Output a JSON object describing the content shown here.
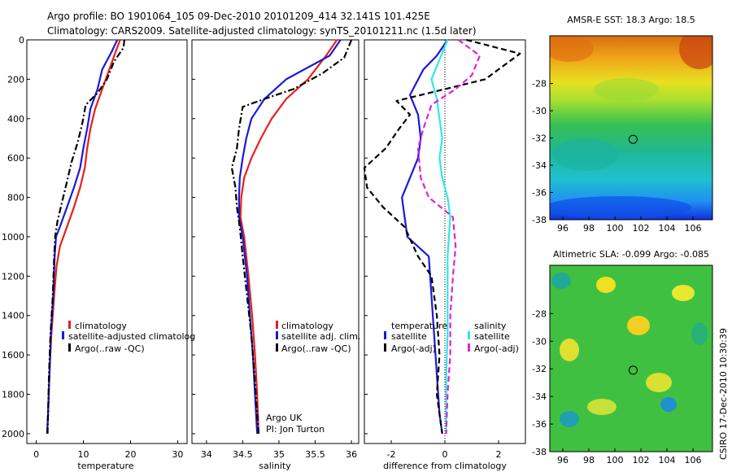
{
  "header": {
    "line1": "Argo profile: BO 1901064_105 09-Dec-2010 20101209_414 32.141S 101.425E",
    "line2": "Climatology: CARS2009. Satellite-adjusted climatology: synTS_20101211.nc (1.5d later)"
  },
  "side_note": "CSIRO 17-Dec-2010 10:30:39",
  "colors": {
    "climatology": "#e8201b",
    "satellite": "#1a1ad6",
    "argo": "#000000",
    "sal_satellite": "#30e8e8",
    "sal_argo": "#e020d8"
  },
  "chart_data": [
    {
      "type": "line",
      "panel": "temperature",
      "xlabel": "temperature",
      "xlim": [
        -2,
        32
      ],
      "ylim": [
        2050,
        0
      ],
      "y_reversed": true,
      "xticks": [
        0,
        10,
        20,
        30
      ],
      "yticks": [
        0,
        200,
        400,
        600,
        800,
        1000,
        1200,
        1400,
        1600,
        1800,
        2000
      ],
      "series": [
        {
          "name": "climatology",
          "style": "solid",
          "color_key": "climatology",
          "points": [
            [
              17.8,
              0
            ],
            [
              17,
              50
            ],
            [
              15.5,
              150
            ],
            [
              14,
              250
            ],
            [
              12.5,
              350
            ],
            [
              11.5,
              450
            ],
            [
              10.8,
              550
            ],
            [
              10.3,
              650
            ],
            [
              9.3,
              750
            ],
            [
              8,
              850
            ],
            [
              6.5,
              950
            ],
            [
              5,
              1050
            ],
            [
              4.3,
              1150
            ],
            [
              3.8,
              1300
            ],
            [
              3.2,
              1500
            ],
            [
              2.8,
              1700
            ],
            [
              2.5,
              1900
            ],
            [
              2.3,
              2000
            ]
          ]
        },
        {
          "name": "satellite-adjusted climatology",
          "style": "solid",
          "color_key": "satellite",
          "points": [
            [
              17.2,
              0
            ],
            [
              16,
              60
            ],
            [
              14,
              150
            ],
            [
              13,
              250
            ],
            [
              11.5,
              350
            ],
            [
              10.8,
              450
            ],
            [
              10,
              550
            ],
            [
              9.3,
              650
            ],
            [
              8,
              750
            ],
            [
              6.5,
              850
            ],
            [
              5,
              950
            ],
            [
              4.2,
              1000
            ],
            [
              3.9,
              1100
            ],
            [
              3.6,
              1300
            ],
            [
              3.1,
              1500
            ],
            [
              2.8,
              1700
            ],
            [
              2.5,
              1900
            ],
            [
              2.3,
              2000
            ]
          ]
        },
        {
          "name": "Argo(..raw -QC)",
          "style": "dashdot",
          "color_key": "argo",
          "points": [
            [
              18.7,
              0
            ],
            [
              18.5,
              40
            ],
            [
              16.5,
              110
            ],
            [
              15,
              200
            ],
            [
              13,
              270
            ],
            [
              10.5,
              330
            ],
            [
              9.8,
              420
            ],
            [
              8.8,
              520
            ],
            [
              7.5,
              620
            ],
            [
              6.5,
              720
            ],
            [
              5.5,
              820
            ],
            [
              4.5,
              920
            ],
            [
              4,
              1000
            ],
            [
              3.8,
              1100
            ],
            [
              3.5,
              1300
            ],
            [
              3,
              1500
            ],
            [
              2.7,
              1700
            ],
            [
              2.5,
              1900
            ],
            [
              2.4,
              2000
            ]
          ]
        }
      ],
      "legend": [
        "climatology",
        "satellite-adjusted climatolog",
        "Argo(..raw -QC)"
      ]
    },
    {
      "type": "line",
      "panel": "salinity",
      "xlabel": "salinity",
      "xlim": [
        33.8,
        36.1
      ],
      "ylim": [
        2050,
        0
      ],
      "y_reversed": true,
      "xticks": [
        34,
        34.5,
        35,
        35.5,
        36
      ],
      "series": [
        {
          "name": "climatology",
          "style": "solid",
          "color_key": "climatology",
          "points": [
            [
              35.8,
              0
            ],
            [
              35.65,
              80
            ],
            [
              35.4,
              200
            ],
            [
              35.1,
              300
            ],
            [
              34.9,
              400
            ],
            [
              34.75,
              500
            ],
            [
              34.62,
              600
            ],
            [
              34.52,
              700
            ],
            [
              34.48,
              800
            ],
            [
              34.47,
              900
            ],
            [
              34.52,
              1000
            ],
            [
              34.58,
              1200
            ],
            [
              34.63,
              1400
            ],
            [
              34.67,
              1600
            ],
            [
              34.7,
              1800
            ],
            [
              34.72,
              2000
            ]
          ]
        },
        {
          "name": "satellite adj. clim.",
          "style": "solid",
          "color_key": "satellite",
          "points": [
            [
              35.85,
              0
            ],
            [
              35.7,
              80
            ],
            [
              35.1,
              200
            ],
            [
              34.8,
              300
            ],
            [
              34.62,
              400
            ],
            [
              34.55,
              500
            ],
            [
              34.5,
              600
            ],
            [
              34.46,
              700
            ],
            [
              34.45,
              800
            ],
            [
              34.45,
              900
            ],
            [
              34.5,
              1000
            ],
            [
              34.56,
              1200
            ],
            [
              34.6,
              1400
            ],
            [
              34.64,
              1600
            ],
            [
              34.67,
              1800
            ],
            [
              34.7,
              2000
            ]
          ]
        },
        {
          "name": "Argo(..raw -QC)",
          "style": "dashdot",
          "color_key": "argo",
          "points": [
            [
              36.0,
              0
            ],
            [
              35.9,
              90
            ],
            [
              35.6,
              170
            ],
            [
              35.2,
              250
            ],
            [
              34.8,
              300
            ],
            [
              34.5,
              340
            ],
            [
              34.45,
              450
            ],
            [
              34.42,
              550
            ],
            [
              34.35,
              650
            ],
            [
              34.4,
              750
            ],
            [
              34.42,
              850
            ],
            [
              34.46,
              950
            ],
            [
              34.5,
              1100
            ],
            [
              34.56,
              1300
            ],
            [
              34.62,
              1500
            ],
            [
              34.66,
              1700
            ],
            [
              34.7,
              1900
            ],
            [
              34.72,
              2000
            ]
          ]
        }
      ],
      "legend": [
        "climatology",
        "satellite adj. clim.",
        "Argo(..raw -QC)"
      ],
      "annotation": [
        "Argo UK",
        "PI: Jon Turton"
      ]
    },
    {
      "type": "line",
      "panel": "difference",
      "xlabel": "difference from climatology",
      "xlim": [
        -3,
        3
      ],
      "ylim": [
        2050,
        0
      ],
      "y_reversed": true,
      "xticks": [
        -2,
        0,
        2
      ],
      "zero_line": true,
      "series": [
        {
          "name": "temperature satellite",
          "style": "solid",
          "color_key": "satellite",
          "points": [
            [
              0.1,
              0
            ],
            [
              -0.3,
              80
            ],
            [
              -0.8,
              150
            ],
            [
              -1.3,
              280
            ],
            [
              -1.0,
              380
            ],
            [
              -0.9,
              500
            ],
            [
              -1.0,
              600
            ],
            [
              -1.3,
              700
            ],
            [
              -1.6,
              800
            ],
            [
              -1.5,
              900
            ],
            [
              -1.4,
              1000
            ],
            [
              -0.6,
              1100
            ],
            [
              -0.5,
              1300
            ],
            [
              -0.4,
              1500
            ],
            [
              -0.3,
              1700
            ],
            [
              -0.2,
              1900
            ],
            [
              -0.1,
              2000
            ]
          ]
        },
        {
          "name": "temperature Argo(-adj)",
          "style": "dashed",
          "color_key": "argo",
          "points": [
            [
              0.8,
              0
            ],
            [
              2.8,
              70
            ],
            [
              1.5,
              200
            ],
            [
              -1.8,
              310
            ],
            [
              -1.3,
              380
            ],
            [
              -1.7,
              450
            ],
            [
              -2.2,
              550
            ],
            [
              -3.0,
              650
            ],
            [
              -2.9,
              750
            ],
            [
              -2.3,
              850
            ],
            [
              -1.5,
              950
            ],
            [
              -1.0,
              1100
            ],
            [
              -0.5,
              1200
            ],
            [
              -0.3,
              1400
            ],
            [
              -0.2,
              1600
            ],
            [
              -0.3,
              1800
            ],
            [
              -0.1,
              2000
            ]
          ]
        },
        {
          "name": "salinity satellite",
          "style": "solid",
          "color_key": "sal_satellite",
          "points": [
            [
              0.1,
              0
            ],
            [
              -0.2,
              100
            ],
            [
              -0.5,
              200
            ],
            [
              -0.3,
              300
            ],
            [
              -0.2,
              400
            ],
            [
              -0.1,
              500
            ],
            [
              -0.2,
              600
            ],
            [
              -0.1,
              700
            ],
            [
              0.1,
              800
            ],
            [
              0.2,
              900
            ],
            [
              0.1,
              1100
            ],
            [
              0.1,
              1300
            ],
            [
              0.1,
              1500
            ],
            [
              0.05,
              1700
            ],
            [
              0.05,
              2000
            ]
          ]
        },
        {
          "name": "salinity Argo(-adj)",
          "style": "dashed",
          "color_key": "sal_argo",
          "points": [
            [
              0.5,
              0
            ],
            [
              1.3,
              80
            ],
            [
              1.0,
              180
            ],
            [
              0.4,
              250
            ],
            [
              -0.5,
              330
            ],
            [
              -0.8,
              450
            ],
            [
              -1.0,
              550
            ],
            [
              -0.9,
              700
            ],
            [
              -0.6,
              800
            ],
            [
              0.3,
              900
            ],
            [
              0.4,
              1050
            ],
            [
              0.3,
              1200
            ],
            [
              0.2,
              1400
            ],
            [
              0.2,
              1600
            ],
            [
              0.1,
              1800
            ],
            [
              0.05,
              2000
            ]
          ]
        }
      ],
      "legend_temperature": {
        "title": "temperature",
        "items": [
          "satellite",
          "Argo(-adj)"
        ]
      },
      "legend_salinity": {
        "title": "salinity",
        "items": [
          "satellite",
          "Argo(-adj)"
        ]
      }
    },
    {
      "type": "heatmap",
      "panel": "sst_map",
      "title": "AMSR-E SST: 18.3 Argo: 18.5",
      "xlim": [
        95,
        107.5
      ],
      "ylim": [
        -38,
        -24.5
      ],
      "xticks": [
        96,
        98,
        100,
        102,
        104,
        106
      ],
      "yticks": [
        -28,
        -30,
        -32,
        -34,
        -36,
        -38
      ],
      "marker": {
        "lon": 101.4,
        "lat": -32.1
      }
    },
    {
      "type": "heatmap",
      "panel": "sla_map",
      "title": "Altimetric SLA: -0.099 Argo: -0.085",
      "xlim": [
        95,
        107.5
      ],
      "ylim": [
        -38,
        -24.5
      ],
      "xticks": [
        96,
        98,
        100,
        102,
        104,
        106
      ],
      "yticks": [
        -28,
        -30,
        -32,
        -34,
        -36,
        -38
      ],
      "marker": {
        "lon": 101.4,
        "lat": -32.1
      }
    }
  ]
}
